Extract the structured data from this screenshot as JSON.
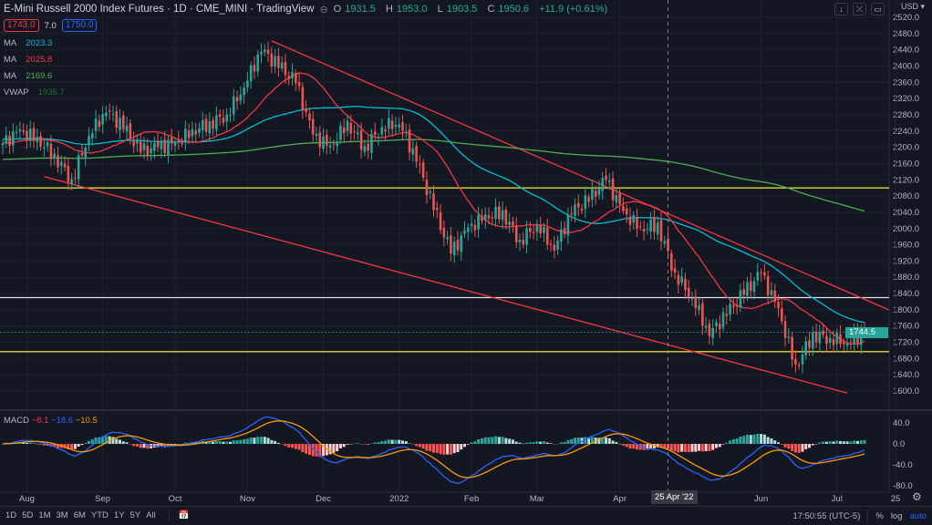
{
  "header": {
    "title": "E-Mini Russell 2000 Index Futures · 1D · CME_MINI · TradingView",
    "ohlc": [
      {
        "k": "O",
        "v": "1931.5"
      },
      {
        "k": "H",
        "v": "1953.0"
      },
      {
        "k": "L",
        "v": "1903.5"
      },
      {
        "k": "C",
        "v": "1950.6"
      }
    ],
    "change": "+11.9 (+0.61%)",
    "bid": "1743.0",
    "spread": "7.0",
    "ask": "1750.0"
  },
  "indicators": [
    {
      "label": "MA",
      "value": "2023.3",
      "color": "#00bcd4"
    },
    {
      "label": "MA",
      "value": "2025.8",
      "color": "#f23645"
    },
    {
      "label": "MA",
      "value": "2169.6",
      "color": "#4caf50"
    },
    {
      "label": "VWAP",
      "value": "1935.7",
      "color": "#1e6b34"
    }
  ],
  "macd": {
    "label": "MACD",
    "hist": "−8.1",
    "macd": "−18.6",
    "signal": "−10.5"
  },
  "currency": "USD",
  "last_price": "1744.5",
  "crosshair_date": "25 Apr '22",
  "timeframes": [
    "1D",
    "5D",
    "1M",
    "3M",
    "6M",
    "YTD",
    "1Y",
    "5Y",
    "All"
  ],
  "clock": "17:50:55 (UTC-5)",
  "scale_buttons": {
    "percent": "%",
    "log": "log",
    "auto": "auto"
  },
  "colors": {
    "up": "#26a69a",
    "down": "#ef5350",
    "bg": "#131722"
  },
  "chart_data": {
    "type": "candlestick",
    "x_unit": "trading day index",
    "weekly_closes": [
      2210,
      2240,
      2220,
      2180,
      2120,
      2230,
      2290,
      2250,
      2190,
      2200,
      2210,
      2240,
      2260,
      2280,
      2350,
      2440,
      2400,
      2360,
      2230,
      2200,
      2260,
      2200,
      2250,
      2260,
      2170,
      2050,
      1940,
      2000,
      2030,
      2040,
      1970,
      2010,
      1950,
      2040,
      2070,
      2120,
      2040,
      2000,
      2010,
      1890,
      1830,
      1740,
      1790,
      1840,
      1890,
      1800,
      1660,
      1740,
      1730,
      1720,
      1744.5
    ],
    "ylim": [
      1580,
      2530
    ],
    "y_ticks": [
      1600,
      1640,
      1680,
      1720,
      1760,
      1800,
      1840,
      1880,
      1920,
      1960,
      2000,
      2040,
      2080,
      2120,
      2160,
      2200,
      2240,
      2280,
      2320,
      2360,
      2400,
      2440,
      2480,
      2520
    ],
    "x_ticks": [
      {
        "label": "Aug",
        "day": 7
      },
      {
        "label": "Sep",
        "day": 29
      },
      {
        "label": "Oct",
        "day": 50
      },
      {
        "label": "Nov",
        "day": 71
      },
      {
        "label": "Dec",
        "day": 93
      },
      {
        "label": "2022",
        "day": 115
      },
      {
        "label": "Feb",
        "day": 136
      },
      {
        "label": "Mar",
        "day": 155
      },
      {
        "label": "Apr",
        "day": 179
      },
      {
        "label": "Jun",
        "day": 220
      },
      {
        "label": "Jul",
        "day": 242
      },
      {
        "label": "25",
        "day": 259
      }
    ],
    "macd_ticks": [
      40,
      0,
      -40,
      -80
    ],
    "hlines": [
      {
        "price": 2100,
        "color": "#e6d92c"
      },
      {
        "price": 1830,
        "color": "#e0e3eb"
      },
      {
        "price": 1697,
        "color": "#e6d92c"
      }
    ],
    "trendlines": [
      {
        "from": [
          78,
          2462
        ],
        "to": [
          257,
          1800
        ],
        "color": "#f23645"
      },
      {
        "from": [
          12,
          2128
        ],
        "to": [
          245,
          1595
        ],
        "color": "#f23645"
      }
    ],
    "crosshair_day": 193
  }
}
